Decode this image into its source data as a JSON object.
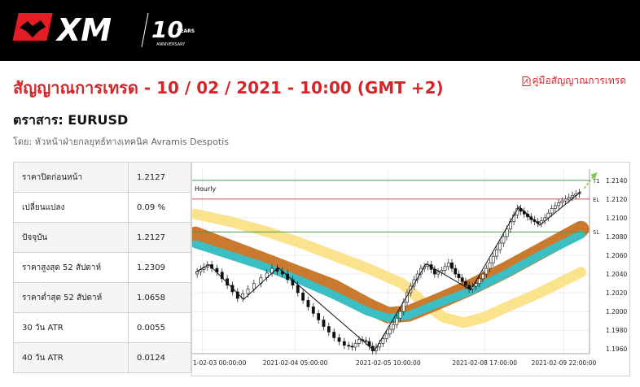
{
  "header": {
    "brand": "XM",
    "anniversary_number": "10",
    "anniversary_years": "YEARS",
    "anniversary_label": "ANNIVERSARY"
  },
  "page": {
    "title": "สัญญาณการเทรด - 10 / 02 / 2021 - 10:00 (GMT +2)",
    "guide_link": "คู่มือสัญญาณการเทรด",
    "instrument": "ตราสาร: EURUSD",
    "author": "โดย: หัวหน้าฝ่ายกลยุทธ์ทางเทคนิค Avramis Despotis"
  },
  "stats": [
    {
      "label": "ราคาปิดก่อนหน้า",
      "value": "1.2127"
    },
    {
      "label": "เปลี่ยนแปลง",
      "value": "0.09 %"
    },
    {
      "label": "ปัจจุบัน",
      "value": "1.2127"
    },
    {
      "label": "ราคาสูงสุด 52 สัปดาห์",
      "value": "1.2309"
    },
    {
      "label": "ราคาต่ำสุด 52 สัปดาห์",
      "value": "1.0658"
    },
    {
      "label": "30 วัน ATR",
      "value": "0.0055"
    },
    {
      "label": "40 วัน ATR",
      "value": "0.0124"
    }
  ],
  "chart_data": {
    "type": "line",
    "timeframe_label": "Hourly",
    "x_ticks": [
      "1-02-03 00:00:00",
      "2021-02-04 05:00:00",
      "2021-02-05 10:00:00",
      "2021-02-08 17:00:00",
      "2021-02-09 22:00:00"
    ],
    "y_ticks": [
      "1.2140",
      "1.2120",
      "1.2100",
      "1.2080",
      "1.2060",
      "1.2040",
      "1.2020",
      "1.2000",
      "1.1980",
      "1.1960"
    ],
    "ylim": [
      1.1955,
      1.2152
    ],
    "levels": [
      {
        "name": "T1",
        "value": 1.214,
        "color": "#4c9a4c"
      },
      {
        "name": "EL",
        "value": 1.212,
        "color": "#d05050"
      },
      {
        "name": "SL",
        "value": 1.2085,
        "color": "#4c9a4c"
      }
    ],
    "price": [
      {
        "t": 0,
        "y": 1.204
      },
      {
        "t": 2,
        "y": 1.2045
      },
      {
        "t": 4,
        "y": 1.205
      },
      {
        "t": 7,
        "y": 1.2042
      },
      {
        "t": 10,
        "y": 1.2028
      },
      {
        "t": 13,
        "y": 1.2014
      },
      {
        "t": 16,
        "y": 1.2024
      },
      {
        "t": 20,
        "y": 1.2036
      },
      {
        "t": 23,
        "y": 1.2046
      },
      {
        "t": 26,
        "y": 1.204
      },
      {
        "t": 29,
        "y": 1.2028
      },
      {
        "t": 32,
        "y": 1.2012
      },
      {
        "t": 35,
        "y": 1.1998
      },
      {
        "t": 38,
        "y": 1.1984
      },
      {
        "t": 41,
        "y": 1.1972
      },
      {
        "t": 44,
        "y": 1.1964
      },
      {
        "t": 46,
        "y": 1.1962
      },
      {
        "t": 48,
        "y": 1.197
      },
      {
        "t": 50,
        "y": 1.1968
      },
      {
        "t": 52,
        "y": 1.1958
      },
      {
        "t": 54,
        "y": 1.1966
      },
      {
        "t": 56,
        "y": 1.1976
      },
      {
        "t": 58,
        "y": 1.1986
      },
      {
        "t": 60,
        "y": 1.2
      },
      {
        "t": 62,
        "y": 1.202
      },
      {
        "t": 64,
        "y": 1.2034
      },
      {
        "t": 66,
        "y": 1.2046
      },
      {
        "t": 68,
        "y": 1.205
      },
      {
        "t": 70,
        "y": 1.204
      },
      {
        "t": 72,
        "y": 1.2044
      },
      {
        "t": 74,
        "y": 1.2052
      },
      {
        "t": 76,
        "y": 1.204
      },
      {
        "t": 78,
        "y": 1.2032
      },
      {
        "t": 80,
        "y": 1.2024
      },
      {
        "t": 82,
        "y": 1.203
      },
      {
        "t": 84,
        "y": 1.204
      },
      {
        "t": 86,
        "y": 1.2052
      },
      {
        "t": 88,
        "y": 1.2066
      },
      {
        "t": 90,
        "y": 1.208
      },
      {
        "t": 92,
        "y": 1.2096
      },
      {
        "t": 94,
        "y": 1.211
      },
      {
        "t": 96,
        "y": 1.2104
      },
      {
        "t": 98,
        "y": 1.2098
      },
      {
        "t": 100,
        "y": 1.2094
      },
      {
        "t": 102,
        "y": 1.21
      },
      {
        "t": 104,
        "y": 1.211
      },
      {
        "t": 106,
        "y": 1.2116
      },
      {
        "t": 108,
        "y": 1.212
      },
      {
        "t": 110,
        "y": 1.2124
      },
      {
        "t": 112,
        "y": 1.2127
      }
    ],
    "zigzag": [
      {
        "t": 0,
        "y": 1.2042
      },
      {
        "t": 4,
        "y": 1.205
      },
      {
        "t": 14,
        "y": 1.2013
      },
      {
        "t": 24,
        "y": 1.2047
      },
      {
        "t": 52,
        "y": 1.1958
      },
      {
        "t": 67,
        "y": 1.2051
      },
      {
        "t": 80,
        "y": 1.2023
      },
      {
        "t": 94,
        "y": 1.2112
      },
      {
        "t": 100,
        "y": 1.2092
      },
      {
        "t": 112,
        "y": 1.2128
      }
    ],
    "bands": [
      {
        "name": "outer",
        "color": "#fbe38e",
        "points": [
          {
            "t": 0,
            "y": 1.2104
          },
          {
            "t": 10,
            "y": 1.2096
          },
          {
            "t": 20,
            "y": 1.2086
          },
          {
            "t": 30,
            "y": 1.2074
          },
          {
            "t": 40,
            "y": 1.206
          },
          {
            "t": 50,
            "y": 1.2046
          },
          {
            "t": 60,
            "y": 1.203
          },
          {
            "t": 66,
            "y": 1.201
          },
          {
            "t": 72,
            "y": 1.1994
          },
          {
            "t": 78,
            "y": 1.1988
          },
          {
            "t": 84,
            "y": 1.1994
          },
          {
            "t": 90,
            "y": 1.2004
          },
          {
            "t": 100,
            "y": 1.202
          },
          {
            "t": 112,
            "y": 1.2042
          }
        ]
      },
      {
        "name": "middle",
        "color": "#c97a2e",
        "points": [
          {
            "t": 0,
            "y": 1.2082
          },
          {
            "t": 10,
            "y": 1.2068
          },
          {
            "t": 20,
            "y": 1.2054
          },
          {
            "t": 30,
            "y": 1.204
          },
          {
            "t": 40,
            "y": 1.2026
          },
          {
            "t": 50,
            "y": 1.2006
          },
          {
            "t": 56,
            "y": 1.1996
          },
          {
            "t": 62,
            "y": 1.1998
          },
          {
            "t": 70,
            "y": 1.201
          },
          {
            "t": 80,
            "y": 1.2026
          },
          {
            "t": 90,
            "y": 1.2044
          },
          {
            "t": 100,
            "y": 1.2064
          },
          {
            "t": 112,
            "y": 1.2088
          }
        ]
      },
      {
        "name": "inner",
        "color": "#3bbfc4",
        "points": [
          {
            "t": 0,
            "y": 1.2072
          },
          {
            "t": 10,
            "y": 1.206
          },
          {
            "t": 20,
            "y": 1.2048
          },
          {
            "t": 30,
            "y": 1.2034
          },
          {
            "t": 40,
            "y": 1.2018
          },
          {
            "t": 50,
            "y": 1.2
          },
          {
            "t": 56,
            "y": 1.1993
          },
          {
            "t": 62,
            "y": 1.1996
          },
          {
            "t": 70,
            "y": 1.2008
          },
          {
            "t": 80,
            "y": 1.2022
          },
          {
            "t": 90,
            "y": 1.204
          },
          {
            "t": 100,
            "y": 1.206
          },
          {
            "t": 112,
            "y": 1.2082
          }
        ]
      }
    ],
    "colors": {
      "candle_up": "#ffffff",
      "candle_down": "#111111",
      "grid": "#e3e3e3",
      "target_arrow": "#7cc94a"
    }
  },
  "colors": {
    "accent": "#d6262a",
    "header_bg": "#000000"
  }
}
